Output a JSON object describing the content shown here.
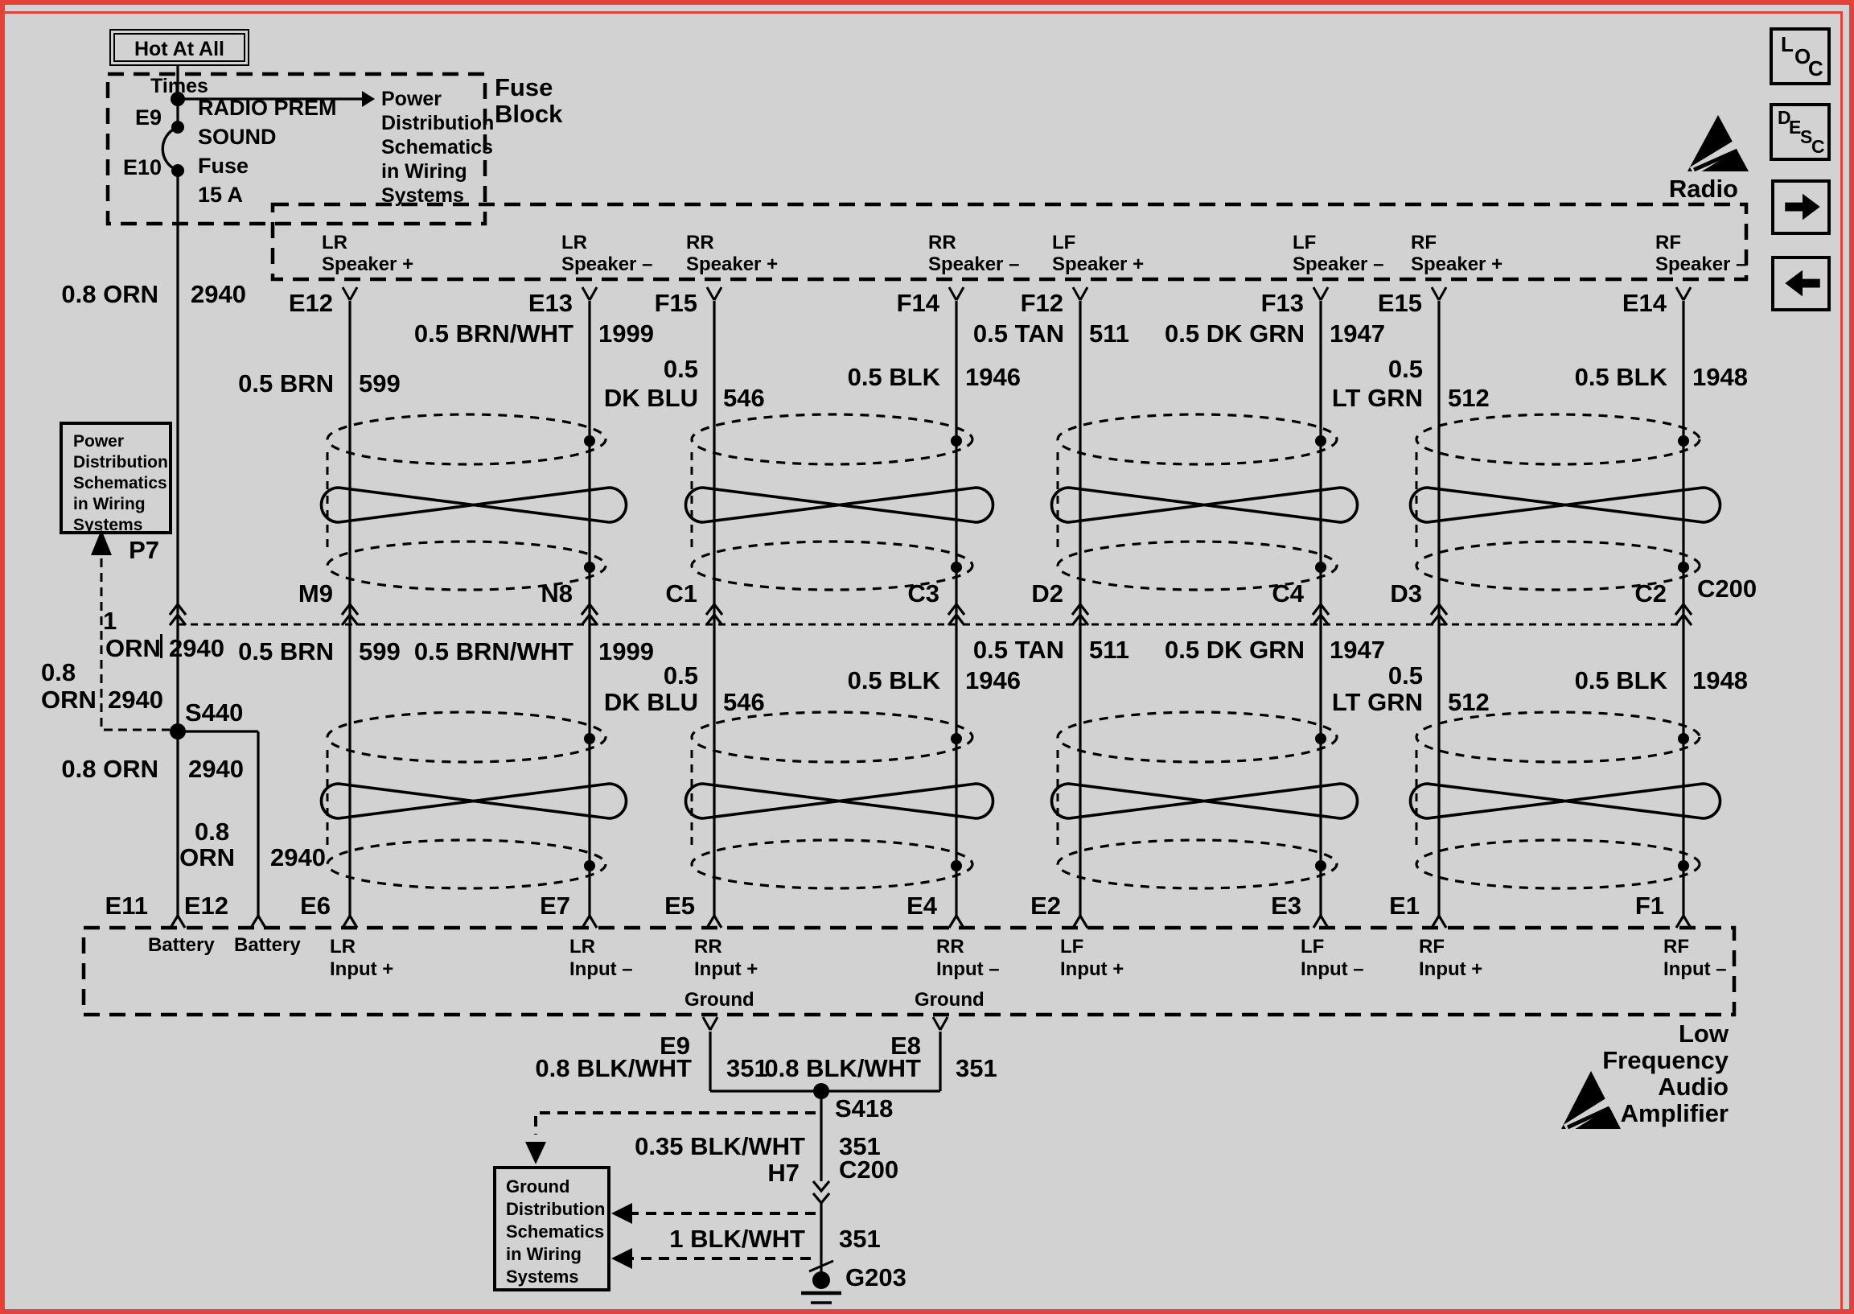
{
  "colors": {
    "background": "#d2d2d2",
    "frame": "#e2423c",
    "ink": "#000000"
  },
  "controls": {
    "loc_button_letters": [
      "L",
      "O",
      "C"
    ],
    "desc_button_letters": [
      "D",
      "E",
      "S",
      "C"
    ],
    "next_button_icon": "arrow-right",
    "prev_button_icon": "arrow-left"
  },
  "fuse_block": {
    "hot_tag": "Hot At All Times",
    "title_lines": [
      "Fuse",
      "Block"
    ],
    "pin_top": "E9",
    "pin_bottom": "E10",
    "fuse_lines": [
      "RADIO PREM",
      "SOUND",
      "Fuse",
      "15 A"
    ],
    "note_lines": [
      "Power",
      "Distribution",
      "Schematics",
      "in Wiring",
      "Systems"
    ]
  },
  "radio": {
    "esd_label": "Radio",
    "connector_label": "C200"
  },
  "power_circuit": {
    "top_label": {
      "name": "0.8 ORN",
      "circuit": "2940"
    },
    "c200_pin": "P7",
    "note_lines": [
      "Power",
      "Distribution",
      "Schematics",
      "in Wiring",
      "Systems"
    ],
    "branch_gauge": "1",
    "branch_row": {
      "name": "ORN",
      "circuit": "2940"
    },
    "left_label": {
      "gauge": "0.8",
      "name": "ORN",
      "circuit": "2940"
    },
    "splice": "S440",
    "below_splice": {
      "name": "0.8 ORN",
      "circuit": "2940"
    },
    "e12_branch": {
      "gauge": "0.8",
      "name": "ORN",
      "circuit": "2940"
    },
    "amp_pins": [
      "E11",
      "E12"
    ],
    "amp_pin_labels": [
      "Battery",
      "Battery"
    ]
  },
  "circuits": [
    {
      "speaker_lines": [
        "LR",
        "Speaker +"
      ],
      "radio_pin": "E12",
      "upper_wire": {
        "lines": [
          "0.5 BRN"
        ],
        "circuit": "599"
      },
      "c200_pin": "M9",
      "lower_wire": {
        "lines": [
          "0.5 BRN"
        ],
        "circuit": "599"
      },
      "amp_pin": "E6",
      "amp_lines": [
        "LR",
        "Input +"
      ]
    },
    {
      "speaker_lines": [
        "LR",
        "Speaker –"
      ],
      "radio_pin": "E13",
      "upper_wire": {
        "lines": [
          "0.5 BRN/WHT"
        ],
        "circuit": "1999"
      },
      "c200_pin": "N8",
      "lower_wire": {
        "lines": [
          "0.5 BRN/WHT"
        ],
        "circuit": "1999"
      },
      "amp_pin": "E7",
      "amp_lines": [
        "LR",
        "Input –"
      ]
    },
    {
      "speaker_lines": [
        "RR",
        "Speaker +"
      ],
      "radio_pin": "F15",
      "upper_wire": {
        "lines": [
          "0.5",
          "DK BLU"
        ],
        "circuit": "546"
      },
      "c200_pin": "C1",
      "lower_wire": {
        "lines": [
          "0.5",
          "DK BLU"
        ],
        "circuit": "546"
      },
      "amp_pin": "E5",
      "amp_lines": [
        "RR",
        "Input +"
      ]
    },
    {
      "speaker_lines": [
        "RR",
        "Speaker –"
      ],
      "radio_pin": "F14",
      "upper_wire": {
        "lines": [
          "0.5 BLK"
        ],
        "circuit": "1946"
      },
      "c200_pin": "C3",
      "lower_wire": {
        "lines": [
          "0.5 BLK"
        ],
        "circuit": "1946"
      },
      "amp_pin": "E4",
      "amp_lines": [
        "RR",
        "Input –"
      ]
    },
    {
      "speaker_lines": [
        "LF",
        "Speaker +"
      ],
      "radio_pin": "F12",
      "upper_wire": {
        "lines": [
          "0.5 TAN"
        ],
        "circuit": "511"
      },
      "c200_pin": "D2",
      "lower_wire": {
        "lines": [
          "0.5 TAN"
        ],
        "circuit": "511"
      },
      "amp_pin": "E2",
      "amp_lines": [
        "LF",
        "Input +"
      ]
    },
    {
      "speaker_lines": [
        "LF",
        "Speaker –"
      ],
      "radio_pin": "F13",
      "upper_wire": {
        "lines": [
          "0.5 DK GRN"
        ],
        "circuit": "1947"
      },
      "c200_pin": "C4",
      "lower_wire": {
        "lines": [
          "0.5 DK GRN"
        ],
        "circuit": "1947"
      },
      "amp_pin": "E3",
      "amp_lines": [
        "LF",
        "Input –"
      ]
    },
    {
      "speaker_lines": [
        "RF",
        "Speaker +"
      ],
      "radio_pin": "E15",
      "upper_wire": {
        "lines": [
          "0.5",
          "LT GRN"
        ],
        "circuit": "512"
      },
      "c200_pin": "D3",
      "lower_wire": {
        "lines": [
          "0.5",
          "LT GRN"
        ],
        "circuit": "512"
      },
      "amp_pin": "E1",
      "amp_lines": [
        "RF",
        "Input +"
      ]
    },
    {
      "speaker_lines": [
        "RF",
        "Speaker –"
      ],
      "radio_pin": "E14",
      "upper_wire": {
        "lines": [
          "0.5 BLK"
        ],
        "circuit": "1948"
      },
      "c200_pin": "C2",
      "lower_wire": {
        "lines": [
          "0.5 BLK"
        ],
        "circuit": "1948"
      },
      "amp_pin": "F1",
      "amp_lines": [
        "RF",
        "Input –"
      ]
    }
  ],
  "amplifier": {
    "name_lines": [
      "Low",
      "Frequency",
      "Audio",
      "Amplifier"
    ],
    "ground_labels": [
      "Ground",
      "Ground"
    ],
    "ground_pins": [
      "E9",
      "E8"
    ],
    "ground_wires": [
      {
        "name": "0.8 BLK/WHT",
        "circuit": "351"
      },
      {
        "name": "0.8 BLK/WHT",
        "circuit": "351"
      }
    ],
    "splice": "S418",
    "splice_wire": {
      "name": "0.35 BLK/WHT",
      "circuit": "351"
    },
    "c200_pin": "H7",
    "c200_label": "C200",
    "ground_wire": {
      "name": "1 BLK/WHT",
      "circuit": "351"
    },
    "ground_ref": "G203",
    "note_lines": [
      "Ground",
      "Distribution",
      "Schematics",
      "in Wiring",
      "Systems"
    ]
  }
}
